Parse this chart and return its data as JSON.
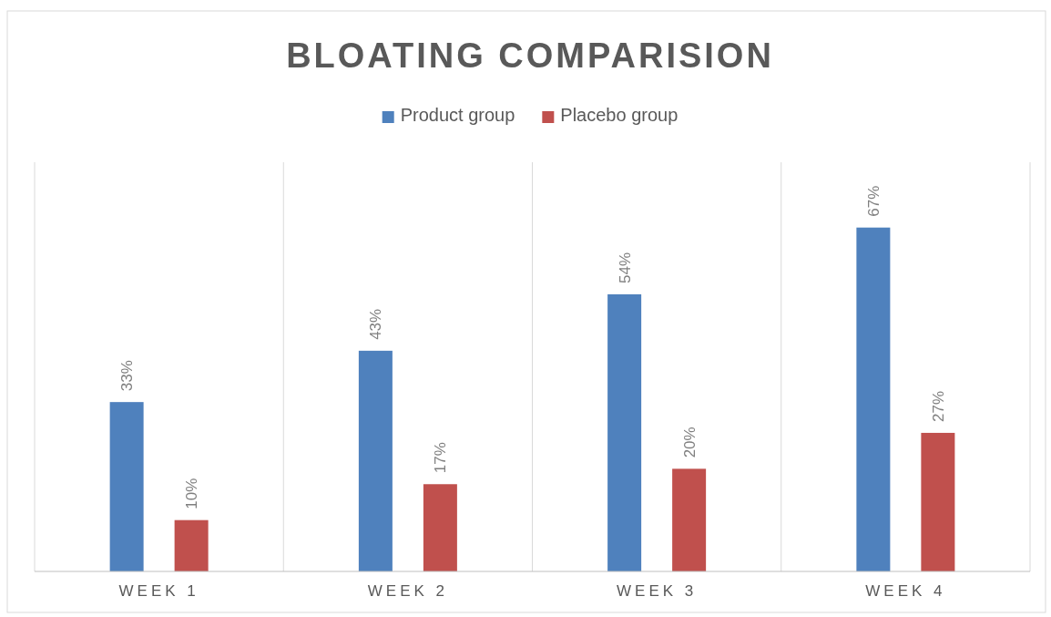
{
  "chart_data": {
    "type": "bar",
    "title": "BLOATING COMPARISION",
    "categories": [
      "WEEK 1",
      "WEEK 2",
      "WEEK 3",
      "WEEK 4"
    ],
    "series": [
      {
        "name": "Product group",
        "color": "#4f81bd",
        "values": [
          33,
          43,
          54,
          67
        ],
        "value_labels": [
          "33%",
          "43%",
          "54%",
          "67%"
        ]
      },
      {
        "name": "Placebo group",
        "color": "#c0504d",
        "values": [
          10,
          17,
          20,
          27
        ],
        "value_labels": [
          "10%",
          "17%",
          "20%",
          "27%"
        ]
      }
    ],
    "grid": "x",
    "legend": "top"
  }
}
